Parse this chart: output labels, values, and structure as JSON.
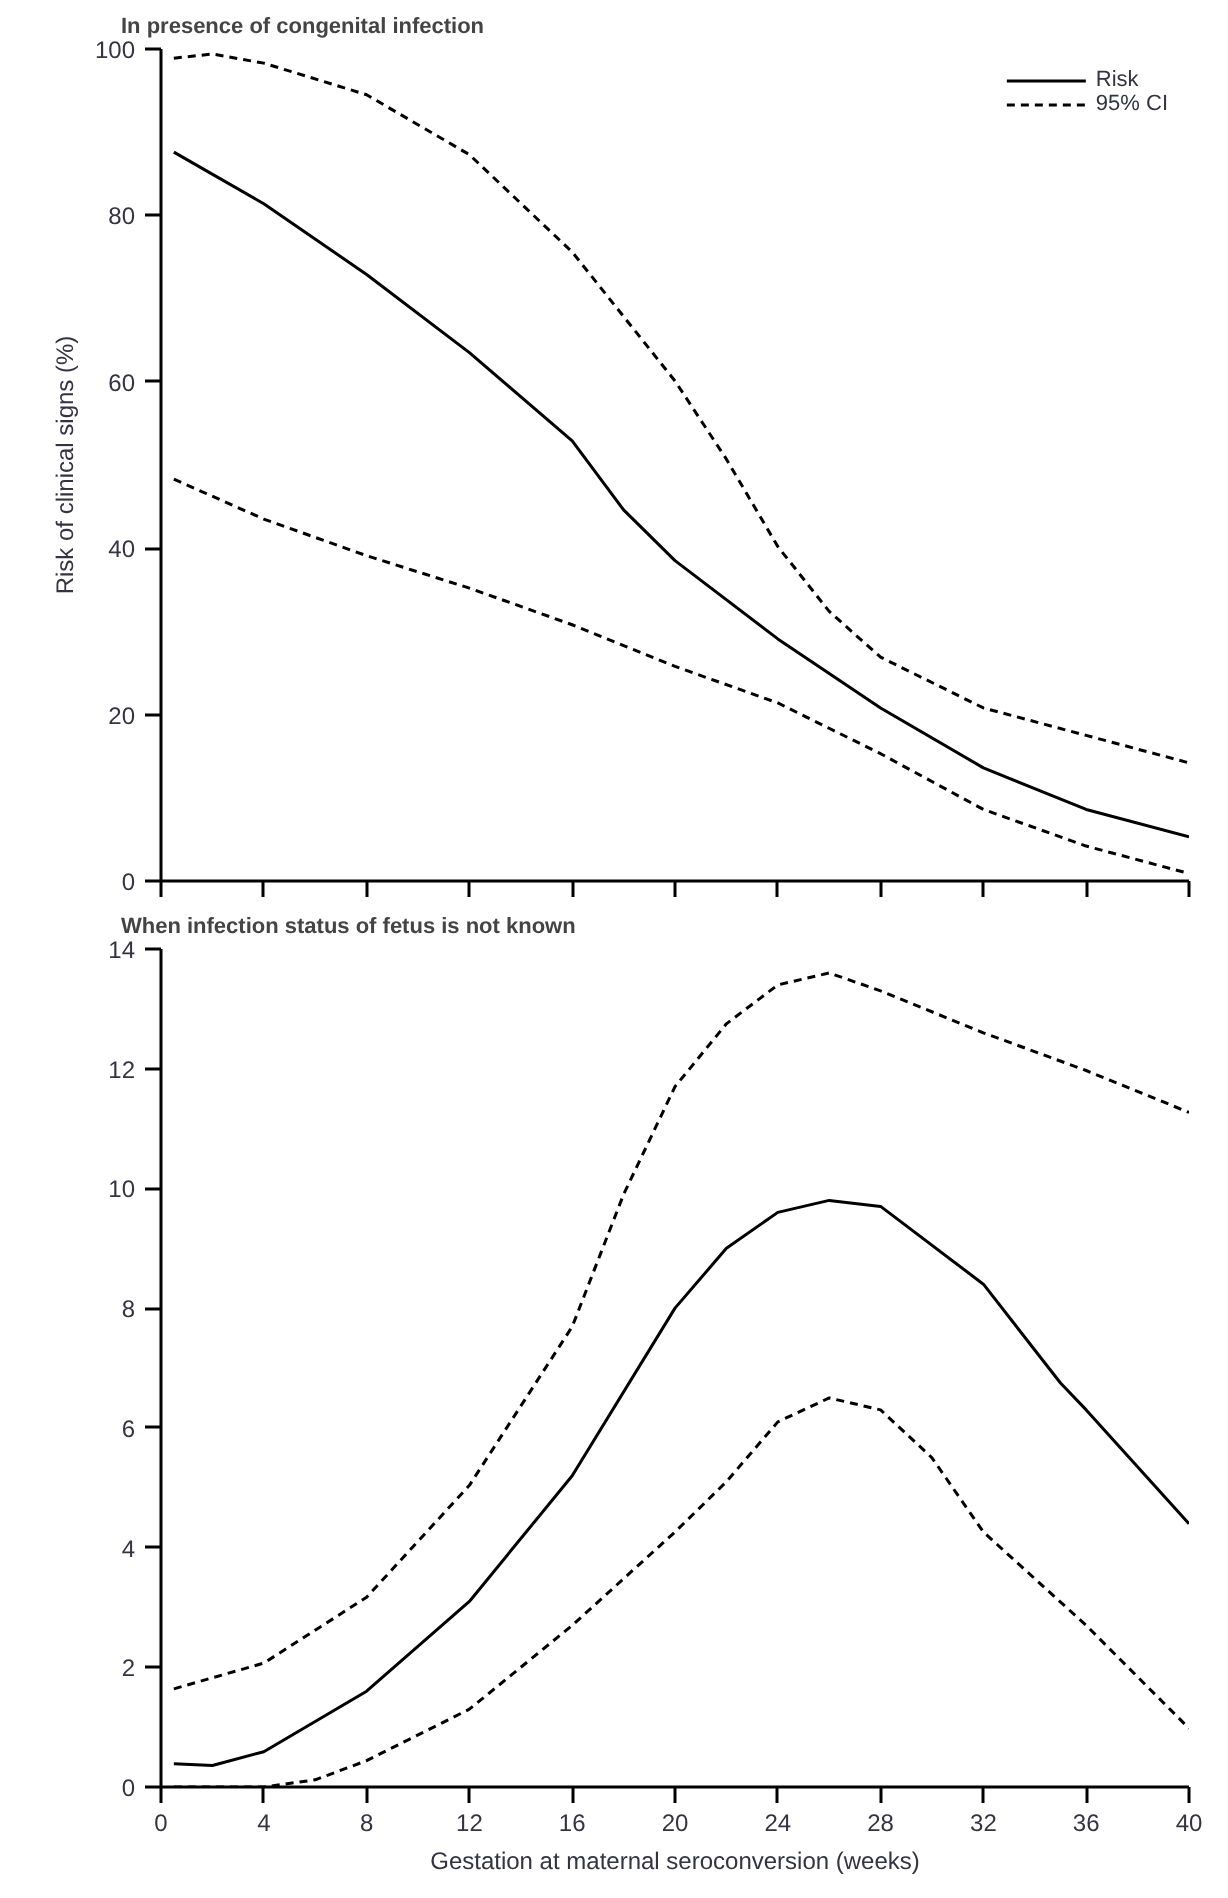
{
  "chart_data": [
    {
      "type": "line",
      "title": "In presence of congenital infection",
      "ylabel": "Risk of clinical signs (%)",
      "xlim": [
        0,
        40
      ],
      "xticks": [
        0,
        4,
        8,
        12,
        16,
        20,
        24,
        28,
        32,
        36,
        40
      ],
      "ylim": [
        0,
        100
      ],
      "yticks": [
        0,
        20,
        40,
        60,
        80,
        100
      ],
      "tick_labels": "y",
      "grid": false,
      "legend": "top right",
      "series": [
        {
          "name": "Risk",
          "color": "#000000",
          "line_style": "solid",
          "x": [
            0.5,
            4,
            8,
            12,
            16,
            18,
            20,
            24,
            28,
            32,
            36,
            40
          ],
          "values": [
            87.6,
            81.4,
            72.9,
            63.5,
            52.9,
            44.6,
            38.5,
            29.1,
            20.8,
            13.6,
            8.6,
            5.3
          ]
        },
        {
          "name": "95% CI",
          "color": "#000000",
          "line_style": "dashed",
          "x": [
            0.5,
            2,
            4,
            8,
            12,
            16,
            20,
            22,
            24,
            26,
            28,
            32,
            36,
            40
          ],
          "values": [
            98.9,
            99.4,
            98.3,
            94.5,
            87.3,
            75.6,
            60.1,
            50.7,
            40.2,
            32.4,
            26.9,
            20.8,
            17.5,
            14.2
          ]
        },
        {
          "color": "#000000",
          "line_style": "dashed",
          "x": [
            0.5,
            4,
            8,
            12,
            16,
            20,
            24,
            28,
            32,
            36,
            40
          ],
          "values": [
            48.3,
            43.5,
            39.1,
            35.2,
            30.8,
            25.8,
            21.4,
            15.3,
            8.6,
            4.2,
            0.9
          ]
        }
      ]
    },
    {
      "type": "line",
      "title": "When infection status of fetus is not known",
      "xlabel": "Gestation at maternal seroconversion (weeks)",
      "xlim": [
        0,
        40
      ],
      "xticks": [
        0,
        4,
        8,
        12,
        16,
        20,
        24,
        28,
        32,
        36,
        40
      ],
      "ylim": [
        0,
        14
      ],
      "yticks": [
        0,
        2,
        4,
        6,
        8,
        10,
        12,
        14
      ],
      "grid": false,
      "series": [
        {
          "color": "#000000",
          "line_style": "solid",
          "x": [
            0.5,
            2,
            4,
            8,
            12,
            16,
            20,
            22,
            24,
            26,
            28,
            32,
            35,
            36,
            40
          ],
          "values": [
            0.39,
            0.36,
            0.59,
            1.6,
            3.1,
            5.2,
            8.0,
            9.0,
            9.6,
            9.8,
            9.7,
            8.4,
            6.75,
            6.3,
            4.4
          ]
        },
        {
          "color": "#000000",
          "line_style": "dashed",
          "x": [
            0.5,
            4,
            8,
            12,
            16,
            18,
            20,
            22,
            24,
            26,
            28,
            32,
            36,
            40
          ],
          "values": [
            1.64,
            2.07,
            3.17,
            5.04,
            7.69,
            9.9,
            11.7,
            12.75,
            13.4,
            13.6,
            13.3,
            12.6,
            11.97,
            11.27
          ]
        },
        {
          "color": "#000000",
          "line_style": "dashed",
          "x": [
            0.5,
            4,
            6,
            8,
            12,
            16,
            20,
            22,
            24,
            26,
            28,
            30,
            32,
            36,
            40
          ],
          "values": [
            0.0,
            0.0,
            0.12,
            0.44,
            1.3,
            2.7,
            4.26,
            5.1,
            6.1,
            6.5,
            6.3,
            5.5,
            4.26,
            2.7,
            0.98
          ]
        }
      ]
    }
  ]
}
